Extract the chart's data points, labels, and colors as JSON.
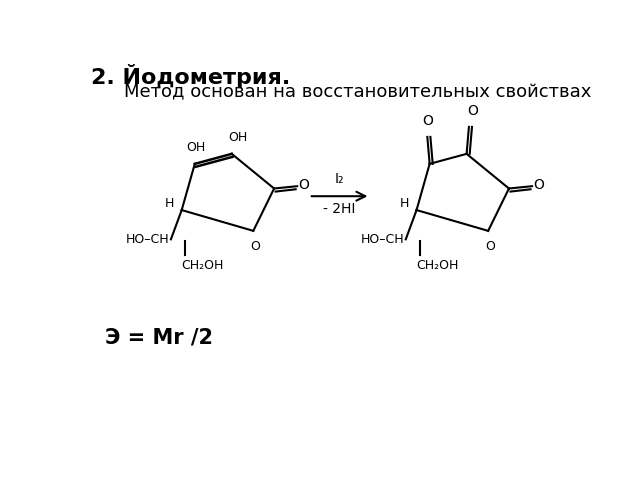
{
  "title": "2. Йодометрия.",
  "subtitle": "Метод основан на восстановительных свойствах",
  "equation": "Э = Mr /2",
  "arrow_label_top": "I₂",
  "arrow_label_bottom": "- 2HI",
  "bg_color": "#ffffff",
  "line_color": "#000000",
  "title_fontsize": 16,
  "subtitle_fontsize": 13,
  "eq_fontsize": 15
}
